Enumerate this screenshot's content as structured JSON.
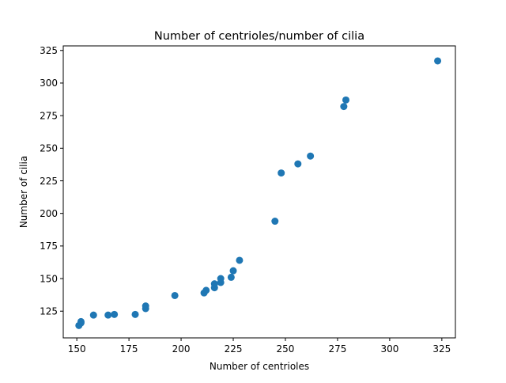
{
  "chart_data": {
    "type": "scatter",
    "title": "Number of centrioles/number of cilia",
    "xlabel": "Number of centrioles",
    "ylabel": "Number of cilia",
    "xlim": [
      143.5,
      331.5
    ],
    "ylim": [
      104.5,
      328.5
    ],
    "xticks": [
      150,
      175,
      200,
      225,
      250,
      275,
      300,
      325
    ],
    "yticks": [
      125,
      150,
      175,
      200,
      225,
      250,
      275,
      300,
      325
    ],
    "grid": false,
    "marker_color": "#1f77b4",
    "points": [
      {
        "x": 151,
        "y": 114
      },
      {
        "x": 152,
        "y": 116
      },
      {
        "x": 152,
        "y": 117
      },
      {
        "x": 158,
        "y": 122
      },
      {
        "x": 165,
        "y": 122
      },
      {
        "x": 168,
        "y": 122.5
      },
      {
        "x": 178,
        "y": 122.5
      },
      {
        "x": 183,
        "y": 127
      },
      {
        "x": 183,
        "y": 129
      },
      {
        "x": 197,
        "y": 137
      },
      {
        "x": 211,
        "y": 139
      },
      {
        "x": 212,
        "y": 141
      },
      {
        "x": 216,
        "y": 143
      },
      {
        "x": 216,
        "y": 146
      },
      {
        "x": 219,
        "y": 147
      },
      {
        "x": 219,
        "y": 150
      },
      {
        "x": 224,
        "y": 151
      },
      {
        "x": 225,
        "y": 156
      },
      {
        "x": 228,
        "y": 164
      },
      {
        "x": 245,
        "y": 194
      },
      {
        "x": 248,
        "y": 231
      },
      {
        "x": 256,
        "y": 238
      },
      {
        "x": 262,
        "y": 244
      },
      {
        "x": 278,
        "y": 282
      },
      {
        "x": 279,
        "y": 287
      },
      {
        "x": 323,
        "y": 317
      }
    ]
  }
}
